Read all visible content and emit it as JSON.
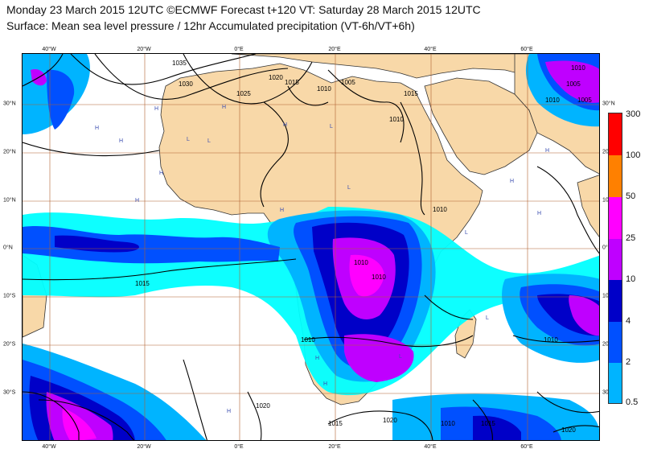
{
  "title": {
    "line1": "Monday 23 March 2015 12UTC ©ECMWF Forecast t+120 VT: Saturday 28 March 2015 12UTC",
    "line2": "Surface: Mean sea level pressure / 12hr Accumulated precipitation (VT-6h/VT+6h)"
  },
  "axes": {
    "lon_labels": [
      "40°W",
      "20°W",
      "0°E",
      "20°E",
      "40°E",
      "60°E"
    ],
    "lat_labels": [
      "30°N",
      "20°N",
      "10°N",
      "0°N",
      "10°S",
      "20°S",
      "30°S"
    ]
  },
  "legend": {
    "labels": [
      "300",
      "100",
      "50",
      "25",
      "10",
      "4",
      "2",
      "0.5"
    ],
    "colors": [
      "#ff0000",
      "#ff8000",
      "#ff00ff",
      "#bf00ff",
      "#0000c8",
      "#0050ff",
      "#00b4ff",
      "#00ffff"
    ]
  },
  "colors": {
    "land": "#f8d8a8",
    "ocean": "#ffffff",
    "grid": "#b06030",
    "isobar": "#000000"
  },
  "isobar_labels": [
    "1035",
    "1030",
    "1025",
    "1020",
    "1015",
    "1010",
    "1005",
    "1015",
    "1010",
    "1010",
    "1010",
    "1015",
    "1010",
    "1010",
    "1010",
    "1020",
    "1015",
    "1010",
    "1015",
    "1020",
    "1010",
    "1005",
    "1010",
    "1020",
    "1005"
  ],
  "pressure_centres": [
    "H",
    "H",
    "H",
    "H",
    "H",
    "H",
    "H",
    "H",
    "H",
    "L",
    "L",
    "L",
    "L",
    "L",
    "H",
    "H",
    "H",
    "H",
    "L",
    "L",
    "H"
  ]
}
